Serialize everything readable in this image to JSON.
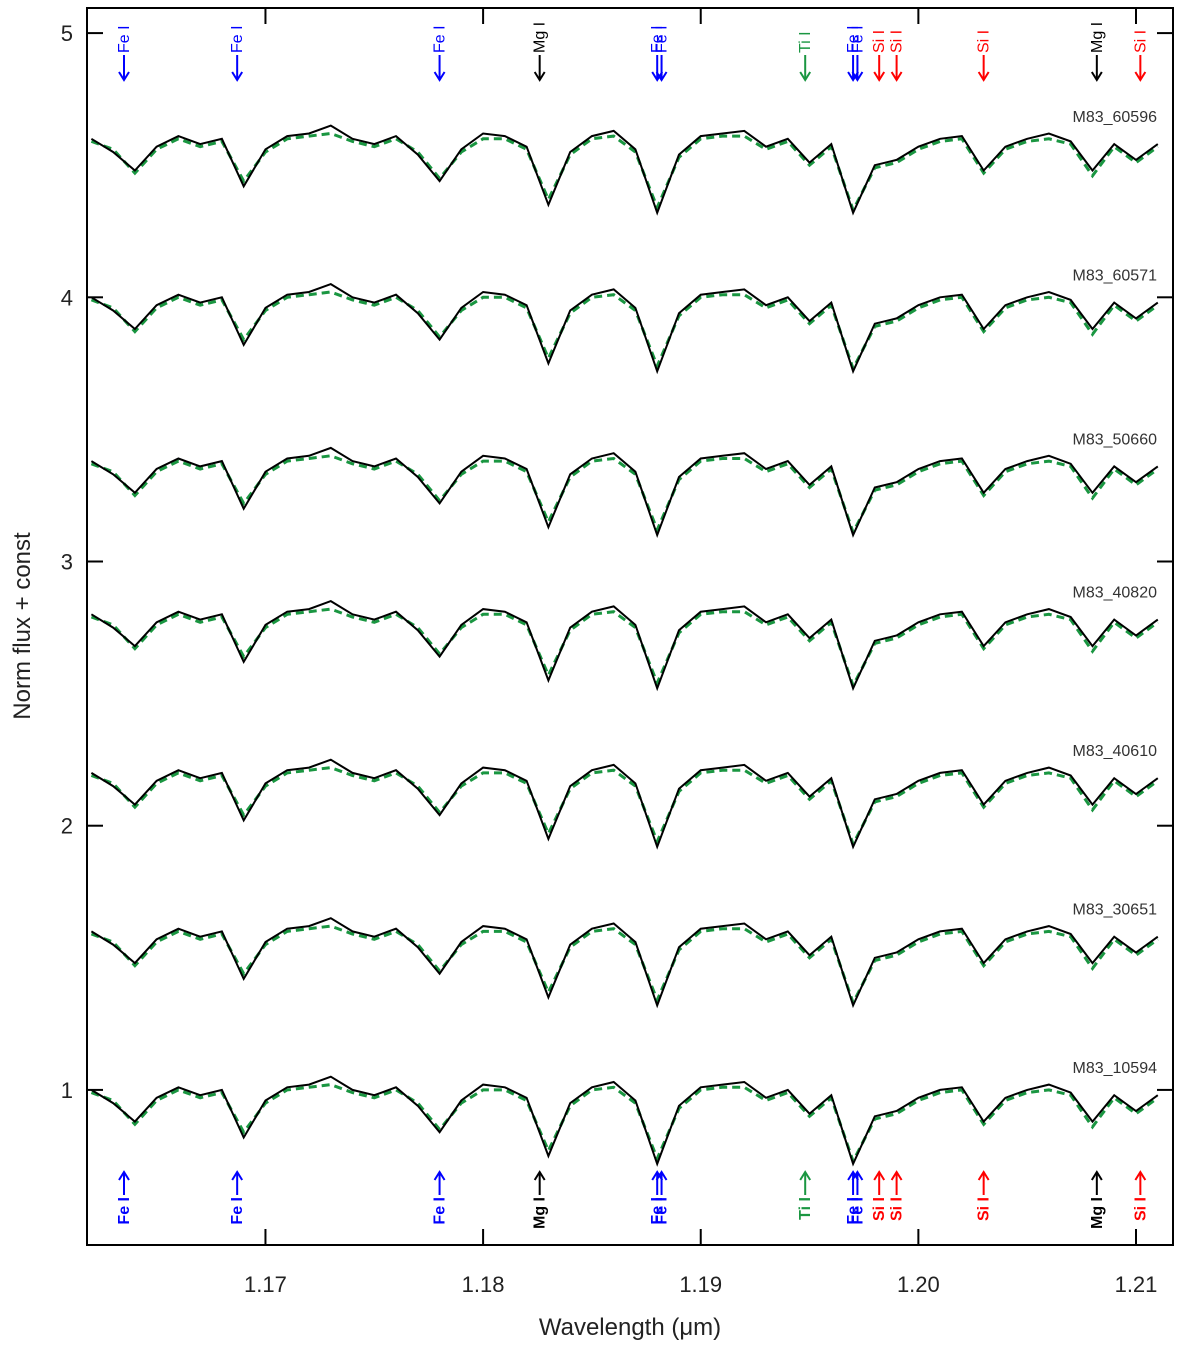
{
  "chart_data": {
    "type": "line",
    "xlabel": "Wavelength (μm)",
    "ylabel": "Norm flux + const",
    "xlim": [
      1.1618,
      1.2117
    ],
    "ylim": [
      0.413,
      5.095
    ],
    "xticks": [
      1.17,
      1.18,
      1.19,
      {
        "value": 1.2,
        "label": "1.20"
      },
      1.21
    ],
    "yticks": [
      1,
      2,
      3,
      4,
      5
    ],
    "observed_color": "#000000",
    "model_color": "#1a9641",
    "x": [
      1.162,
      1.163,
      1.164,
      1.165,
      1.166,
      1.167,
      1.168,
      1.169,
      1.17,
      1.171,
      1.172,
      1.173,
      1.174,
      1.175,
      1.176,
      1.177,
      1.178,
      1.179,
      1.18,
      1.181,
      1.182,
      1.183,
      1.184,
      1.185,
      1.186,
      1.187,
      1.188,
      1.189,
      1.19,
      1.191,
      1.192,
      1.193,
      1.194,
      1.195,
      1.196,
      1.197,
      1.198,
      1.199,
      1.2,
      1.201,
      1.202,
      1.203,
      1.204,
      1.205,
      1.206,
      1.207,
      1.208,
      1.209,
      1.21,
      1.211
    ],
    "series": [
      {
        "name": "M83_60596",
        "values": [
          4.6,
          4.55,
          4.48,
          4.57,
          4.61,
          4.58,
          4.6,
          4.42,
          4.56,
          4.61,
          4.62,
          4.65,
          4.6,
          4.58,
          4.61,
          4.54,
          4.44,
          4.56,
          4.62,
          4.61,
          4.57,
          4.35,
          4.55,
          4.61,
          4.63,
          4.56,
          4.32,
          4.54,
          4.61,
          4.62,
          4.63,
          4.57,
          4.6,
          4.51,
          4.58,
          4.32,
          4.5,
          4.52,
          4.57,
          4.6,
          4.61,
          4.48,
          4.57,
          4.6,
          4.62,
          4.59,
          4.48,
          4.58,
          4.52,
          4.58
        ],
        "model": [
          4.59,
          4.56,
          4.47,
          4.56,
          4.6,
          4.57,
          4.59,
          4.44,
          4.55,
          4.6,
          4.61,
          4.62,
          4.59,
          4.57,
          4.6,
          4.55,
          4.45,
          4.55,
          4.6,
          4.6,
          4.56,
          4.37,
          4.54,
          4.6,
          4.61,
          4.55,
          4.34,
          4.53,
          4.6,
          4.61,
          4.61,
          4.56,
          4.59,
          4.5,
          4.57,
          4.33,
          4.49,
          4.51,
          4.56,
          4.59,
          4.6,
          4.47,
          4.56,
          4.59,
          4.6,
          4.58,
          4.46,
          4.57,
          4.51,
          4.57
        ]
      },
      {
        "name": "M83_60571",
        "values": [
          4.0,
          3.95,
          3.88,
          3.97,
          4.01,
          3.98,
          4.0,
          3.82,
          3.96,
          4.01,
          4.02,
          4.05,
          4.0,
          3.98,
          4.01,
          3.94,
          3.84,
          3.96,
          4.02,
          4.01,
          3.97,
          3.75,
          3.95,
          4.01,
          4.03,
          3.96,
          3.72,
          3.94,
          4.01,
          4.02,
          4.03,
          3.97,
          4.0,
          3.91,
          3.98,
          3.72,
          3.9,
          3.92,
          3.97,
          4.0,
          4.01,
          3.88,
          3.97,
          4.0,
          4.02,
          3.99,
          3.88,
          3.98,
          3.92,
          3.98
        ],
        "model": [
          3.99,
          3.96,
          3.87,
          3.96,
          4.0,
          3.97,
          3.99,
          3.84,
          3.95,
          4.0,
          4.01,
          4.02,
          3.99,
          3.97,
          4.0,
          3.95,
          3.85,
          3.95,
          4.0,
          4.0,
          3.96,
          3.77,
          3.94,
          4.0,
          4.01,
          3.95,
          3.74,
          3.93,
          4.0,
          4.01,
          4.01,
          3.96,
          3.99,
          3.9,
          3.97,
          3.73,
          3.89,
          3.91,
          3.96,
          3.99,
          4.0,
          3.87,
          3.96,
          3.99,
          4.0,
          3.98,
          3.86,
          3.97,
          3.91,
          3.97
        ]
      },
      {
        "name": "M83_50660",
        "values": [
          3.38,
          3.33,
          3.26,
          3.35,
          3.39,
          3.36,
          3.38,
          3.2,
          3.34,
          3.39,
          3.4,
          3.43,
          3.38,
          3.36,
          3.39,
          3.32,
          3.22,
          3.34,
          3.4,
          3.39,
          3.35,
          3.13,
          3.33,
          3.39,
          3.41,
          3.34,
          3.1,
          3.32,
          3.39,
          3.4,
          3.41,
          3.35,
          3.38,
          3.29,
          3.36,
          3.1,
          3.28,
          3.3,
          3.35,
          3.38,
          3.39,
          3.26,
          3.35,
          3.38,
          3.4,
          3.37,
          3.26,
          3.36,
          3.3,
          3.36
        ],
        "model": [
          3.37,
          3.34,
          3.25,
          3.34,
          3.38,
          3.35,
          3.37,
          3.22,
          3.33,
          3.38,
          3.39,
          3.4,
          3.37,
          3.35,
          3.38,
          3.33,
          3.23,
          3.33,
          3.38,
          3.38,
          3.34,
          3.15,
          3.32,
          3.38,
          3.39,
          3.33,
          3.12,
          3.31,
          3.38,
          3.39,
          3.39,
          3.34,
          3.37,
          3.28,
          3.35,
          3.11,
          3.27,
          3.29,
          3.34,
          3.37,
          3.38,
          3.25,
          3.34,
          3.37,
          3.38,
          3.36,
          3.24,
          3.35,
          3.29,
          3.35
        ]
      },
      {
        "name": "M83_40820",
        "values": [
          2.8,
          2.75,
          2.68,
          2.77,
          2.81,
          2.78,
          2.8,
          2.62,
          2.76,
          2.81,
          2.82,
          2.85,
          2.8,
          2.78,
          2.81,
          2.74,
          2.64,
          2.76,
          2.82,
          2.81,
          2.77,
          2.55,
          2.75,
          2.81,
          2.83,
          2.76,
          2.52,
          2.74,
          2.81,
          2.82,
          2.83,
          2.77,
          2.8,
          2.71,
          2.78,
          2.52,
          2.7,
          2.72,
          2.77,
          2.8,
          2.81,
          2.68,
          2.77,
          2.8,
          2.82,
          2.79,
          2.68,
          2.78,
          2.72,
          2.78
        ],
        "model": [
          2.79,
          2.76,
          2.67,
          2.76,
          2.8,
          2.77,
          2.79,
          2.64,
          2.75,
          2.8,
          2.81,
          2.82,
          2.79,
          2.77,
          2.8,
          2.75,
          2.65,
          2.75,
          2.8,
          2.8,
          2.76,
          2.57,
          2.74,
          2.8,
          2.81,
          2.75,
          2.54,
          2.73,
          2.8,
          2.81,
          2.81,
          2.76,
          2.79,
          2.7,
          2.77,
          2.53,
          2.69,
          2.71,
          2.76,
          2.79,
          2.8,
          2.67,
          2.76,
          2.79,
          2.8,
          2.78,
          2.66,
          2.77,
          2.71,
          2.77
        ]
      },
      {
        "name": "M83_40610",
        "values": [
          2.2,
          2.15,
          2.08,
          2.17,
          2.21,
          2.18,
          2.2,
          2.02,
          2.16,
          2.21,
          2.22,
          2.25,
          2.2,
          2.18,
          2.21,
          2.14,
          2.04,
          2.16,
          2.22,
          2.21,
          2.17,
          1.95,
          2.15,
          2.21,
          2.23,
          2.16,
          1.92,
          2.14,
          2.21,
          2.22,
          2.23,
          2.17,
          2.2,
          2.11,
          2.18,
          1.92,
          2.1,
          2.12,
          2.17,
          2.2,
          2.21,
          2.08,
          2.17,
          2.2,
          2.22,
          2.19,
          2.08,
          2.18,
          2.12,
          2.18
        ],
        "model": [
          2.19,
          2.16,
          2.07,
          2.16,
          2.2,
          2.17,
          2.19,
          2.04,
          2.15,
          2.2,
          2.21,
          2.22,
          2.19,
          2.17,
          2.2,
          2.15,
          2.05,
          2.15,
          2.2,
          2.2,
          2.16,
          1.97,
          2.14,
          2.2,
          2.21,
          2.15,
          1.94,
          2.13,
          2.2,
          2.21,
          2.21,
          2.16,
          2.19,
          2.1,
          2.17,
          1.93,
          2.09,
          2.11,
          2.16,
          2.19,
          2.2,
          2.07,
          2.16,
          2.19,
          2.2,
          2.18,
          2.06,
          2.17,
          2.11,
          2.17
        ]
      },
      {
        "name": "M83_30651",
        "values": [
          1.6,
          1.55,
          1.48,
          1.57,
          1.61,
          1.58,
          1.6,
          1.42,
          1.56,
          1.61,
          1.62,
          1.65,
          1.6,
          1.58,
          1.61,
          1.54,
          1.44,
          1.56,
          1.62,
          1.61,
          1.57,
          1.35,
          1.55,
          1.61,
          1.63,
          1.56,
          1.32,
          1.54,
          1.61,
          1.62,
          1.63,
          1.57,
          1.6,
          1.51,
          1.58,
          1.32,
          1.5,
          1.52,
          1.57,
          1.6,
          1.61,
          1.48,
          1.57,
          1.6,
          1.62,
          1.59,
          1.48,
          1.58,
          1.52,
          1.58
        ],
        "model": [
          1.59,
          1.56,
          1.47,
          1.56,
          1.6,
          1.57,
          1.59,
          1.44,
          1.55,
          1.6,
          1.61,
          1.62,
          1.59,
          1.57,
          1.6,
          1.55,
          1.45,
          1.55,
          1.6,
          1.6,
          1.56,
          1.37,
          1.54,
          1.6,
          1.61,
          1.55,
          1.34,
          1.53,
          1.6,
          1.61,
          1.61,
          1.56,
          1.59,
          1.5,
          1.57,
          1.33,
          1.49,
          1.51,
          1.56,
          1.59,
          1.6,
          1.47,
          1.56,
          1.59,
          1.6,
          1.58,
          1.46,
          1.57,
          1.51,
          1.57
        ]
      },
      {
        "name": "M83_10594",
        "values": [
          1.0,
          0.95,
          0.88,
          0.97,
          1.01,
          0.98,
          1.0,
          0.82,
          0.96,
          1.01,
          1.02,
          1.05,
          1.0,
          0.98,
          1.01,
          0.94,
          0.84,
          0.96,
          1.02,
          1.01,
          0.97,
          0.75,
          0.95,
          1.01,
          1.03,
          0.96,
          0.72,
          0.94,
          1.01,
          1.02,
          1.03,
          0.97,
          1.0,
          0.91,
          0.98,
          0.72,
          0.9,
          0.92,
          0.97,
          1.0,
          1.01,
          0.88,
          0.97,
          1.0,
          1.02,
          0.99,
          0.88,
          0.98,
          0.92,
          0.98
        ],
        "model": [
          0.99,
          0.96,
          0.87,
          0.96,
          1.0,
          0.97,
          0.99,
          0.84,
          0.95,
          1.0,
          1.01,
          1.02,
          0.99,
          0.97,
          1.0,
          0.95,
          0.85,
          0.95,
          1.0,
          1.0,
          0.96,
          0.77,
          0.94,
          1.0,
          1.01,
          0.95,
          0.74,
          0.93,
          1.0,
          1.01,
          1.01,
          0.96,
          0.99,
          0.9,
          0.97,
          0.73,
          0.89,
          0.91,
          0.96,
          0.99,
          1.0,
          0.87,
          0.96,
          0.99,
          1.0,
          0.98,
          0.86,
          0.97,
          0.91,
          0.97
        ]
      }
    ],
    "lines": [
      {
        "label": "Fe I",
        "wavelength": 1.1635,
        "color": "#0000ff"
      },
      {
        "label": "Fe I",
        "wavelength": 1.1687,
        "color": "#0000ff"
      },
      {
        "label": "Fe I",
        "wavelength": 1.178,
        "color": "#0000ff"
      },
      {
        "label": "Mg I",
        "wavelength": 1.1826,
        "color": "#000000"
      },
      {
        "label": "Fe I",
        "wavelength": 1.188,
        "color": "#0000ff"
      },
      {
        "label": "Fe I",
        "wavelength": 1.1882,
        "color": "#0000ff"
      },
      {
        "label": "Ti I",
        "wavelength": 1.1948,
        "color": "#1a9641"
      },
      {
        "label": "Fe I",
        "wavelength": 1.197,
        "color": "#0000ff"
      },
      {
        "label": "Fe I",
        "wavelength": 1.1972,
        "color": "#0000ff"
      },
      {
        "label": "Si I",
        "wavelength": 1.1982,
        "color": "#ff0000"
      },
      {
        "label": "Si I",
        "wavelength": 1.199,
        "color": "#ff0000"
      },
      {
        "label": "Si I",
        "wavelength": 1.203,
        "color": "#ff0000"
      },
      {
        "label": "Mg I",
        "wavelength": 1.2082,
        "color": "#000000"
      },
      {
        "label": "Si I",
        "wavelength": 1.2102,
        "color": "#ff0000"
      }
    ]
  }
}
